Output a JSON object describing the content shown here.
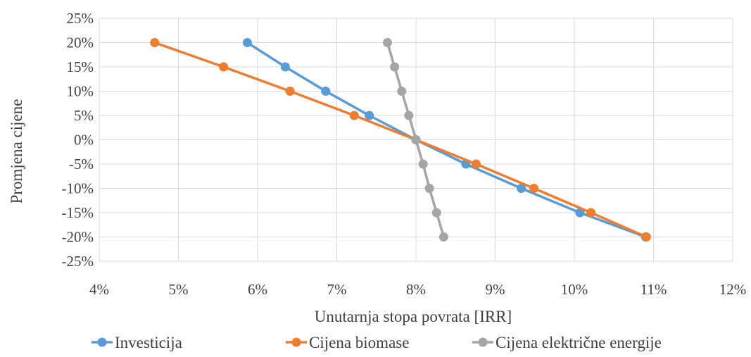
{
  "chart_data": {
    "type": "line",
    "xlabel": "Unutarnja stopa povrata [IRR]",
    "ylabel": "Promjena cijene",
    "xlim": [
      0.04,
      0.12
    ],
    "ylim": [
      -0.25,
      0.25
    ],
    "x_ticks": [
      "4%",
      "5%",
      "6%",
      "7%",
      "8%",
      "9%",
      "10%",
      "11%",
      "12%"
    ],
    "y_ticks": [
      "25%",
      "20%",
      "15%",
      "10%",
      "5%",
      "0%",
      "-5%",
      "-10%",
      "-15%",
      "-20%",
      "-25%"
    ],
    "grid": true,
    "legend_position": "bottom",
    "series": [
      {
        "name": "Investicija",
        "color": "#5b9bd5",
        "points": [
          {
            "x": 0.0587,
            "y": 0.2
          },
          {
            "x": 0.0635,
            "y": 0.15
          },
          {
            "x": 0.0686,
            "y": 0.1
          },
          {
            "x": 0.0741,
            "y": 0.05
          },
          {
            "x": 0.08,
            "y": 0.0
          },
          {
            "x": 0.0863,
            "y": -0.05
          },
          {
            "x": 0.0933,
            "y": -0.1
          },
          {
            "x": 0.1007,
            "y": -0.15
          },
          {
            "x": 0.109,
            "y": -0.2
          }
        ]
      },
      {
        "name": "Cijena biomase",
        "color": "#ed7d31",
        "points": [
          {
            "x": 0.047,
            "y": 0.2
          },
          {
            "x": 0.0557,
            "y": 0.15
          },
          {
            "x": 0.0641,
            "y": 0.1
          },
          {
            "x": 0.0722,
            "y": 0.05
          },
          {
            "x": 0.08,
            "y": 0.0
          },
          {
            "x": 0.0876,
            "y": -0.05
          },
          {
            "x": 0.0949,
            "y": -0.1
          },
          {
            "x": 0.1021,
            "y": -0.15
          },
          {
            "x": 0.1091,
            "y": -0.2
          }
        ]
      },
      {
        "name": "Cijena električne energije",
        "color": "#a5a5a5",
        "points": [
          {
            "x": 0.0764,
            "y": 0.2
          },
          {
            "x": 0.0773,
            "y": 0.15
          },
          {
            "x": 0.0782,
            "y": 0.1
          },
          {
            "x": 0.0791,
            "y": 0.05
          },
          {
            "x": 0.08,
            "y": 0.0
          },
          {
            "x": 0.0809,
            "y": -0.05
          },
          {
            "x": 0.0817,
            "y": -0.1
          },
          {
            "x": 0.0826,
            "y": -0.15
          },
          {
            "x": 0.0835,
            "y": -0.2
          }
        ]
      }
    ]
  }
}
